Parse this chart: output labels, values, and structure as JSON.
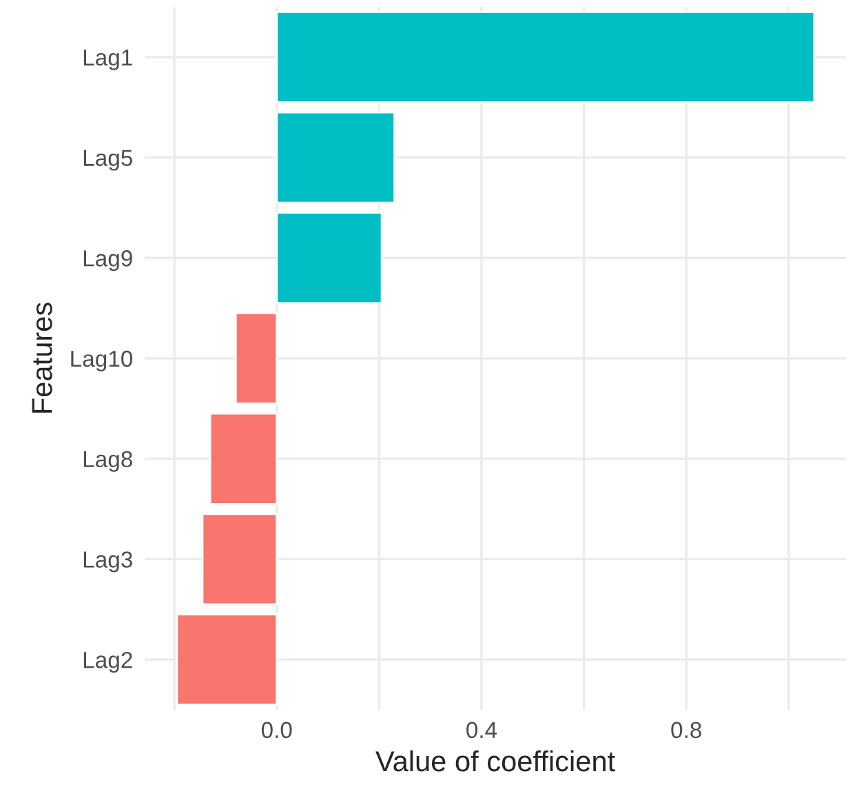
{
  "chart_data": {
    "type": "bar",
    "orientation": "horizontal",
    "xlabel": "Value of coefficient",
    "ylabel": "Features",
    "categories": [
      "Lag1",
      "Lag5",
      "Lag9",
      "Lag10",
      "Lag8",
      "Lag3",
      "Lag2"
    ],
    "values": [
      1.05,
      0.23,
      0.205,
      -0.08,
      -0.13,
      -0.145,
      -0.195
    ],
    "colors": [
      "#00bfc4",
      "#00bfc4",
      "#00bfc4",
      "#f8766d",
      "#f8766d",
      "#f8766d",
      "#f8766d"
    ],
    "xlim": [
      -0.258,
      1.112
    ],
    "xticks": [
      {
        "value": -0.2,
        "label": null
      },
      {
        "value": 0,
        "label": "0.0"
      },
      {
        "value": 0.2,
        "label": null
      },
      0.4,
      {
        "value": 0.6,
        "label": null
      },
      0.8,
      {
        "value": 1.0,
        "label": null
      }
    ],
    "grid": true,
    "legend": false
  }
}
